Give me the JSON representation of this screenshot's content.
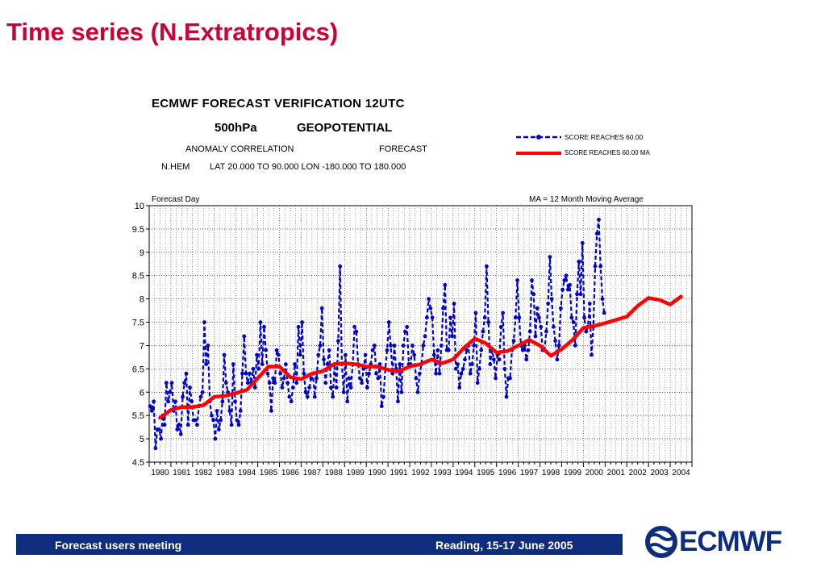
{
  "slide": {
    "title": "Time series (N.Extratropics)",
    "footer_left": "Forecast users meeting",
    "footer_right": "Reading, 15-17 June 2005",
    "logo_text": "ECMWF"
  },
  "colors": {
    "title": "#cc0033",
    "score_line": "#0000cc",
    "ma_line": "#ff0000",
    "footer": "#0f2d7e"
  },
  "header": {
    "line1": "ECMWF  FORECAST  VERIFICATION  12UTC",
    "line2a": "500hPa",
    "line2b": "GEOPOTENTIAL",
    "line3a": "ANOMALY CORRELATION",
    "line3b": "FORECAST",
    "line4a": "N.HEM",
    "line4b": "LAT  20.000 TO  90.000  LON -180.000 TO  180.000"
  },
  "legend": [
    {
      "label": "SCORE REACHES  60.00",
      "style": "dashed-markers",
      "color": "#0000cc"
    },
    {
      "label": "SCORE REACHES  60.00 MA",
      "style": "thick-solid",
      "color": "#ff0000"
    }
  ],
  "chart_data": {
    "type": "line",
    "ylabel": "Forecast Day",
    "annotation": "MA = 12 Month   Moving Average",
    "ylim": [
      4.5,
      10
    ],
    "yticks": [
      "4.5",
      "5",
      "5.5",
      "6",
      "6.5",
      "7",
      "7.5",
      "8",
      "8.5",
      "9",
      "9.5",
      "10"
    ],
    "xticks": [
      "1980",
      "1981",
      "1982",
      "1983",
      "1984",
      "1985",
      "1986",
      "1987",
      "1988",
      "1989",
      "1990",
      "1991",
      "1992",
      "1993",
      "1994",
      "1995",
      "1996",
      "1997",
      "1998",
      "1999",
      "2000",
      "2001",
      "2002",
      "2003",
      "2004"
    ],
    "xlim": [
      1980,
      2005
    ],
    "grid": true,
    "series": [
      {
        "name": "SCORE REACHES  60.00",
        "x_start": 1980.0,
        "x_step_months": 1,
        "values": [
          5.7,
          5.6,
          5.8,
          4.8,
          5.2,
          5.2,
          5.0,
          5.5,
          5.3,
          6.2,
          5.8,
          6.0,
          6.2,
          5.6,
          5.8,
          5.2,
          5.3,
          5.1,
          5.9,
          6.2,
          6.4,
          5.3,
          6.1,
          5.8,
          5.4,
          5.4,
          5.3,
          5.7,
          5.9,
          6.0,
          7.5,
          6.6,
          7.0,
          5.8,
          5.5,
          5.4,
          5.0,
          5.6,
          5.2,
          5.4,
          5.8,
          6.8,
          6.2,
          6.0,
          5.6,
          5.3,
          6.6,
          5.8,
          5.4,
          5.3,
          5.6,
          6.4,
          7.2,
          6.4,
          6.2,
          6.4,
          6.2,
          6.5,
          6.1,
          6.8,
          6.5,
          7.5,
          6.6,
          7.4,
          6.9,
          6.4,
          6.2,
          5.6,
          6.3,
          6.2,
          6.9,
          6.8,
          6.4,
          6.1,
          6.3,
          6.6,
          6.2,
          5.9,
          5.8,
          6.1,
          6.6,
          6.2,
          7.4,
          6.8,
          7.5,
          6.4,
          6.0,
          5.9,
          6.1,
          6.3,
          6.4,
          5.9,
          6.3,
          6.8,
          7.0,
          7.8,
          6.7,
          6.2,
          6.6,
          6.9,
          6.1,
          5.9,
          6.6,
          6.1,
          7.1,
          8.7,
          6.6,
          6.0,
          6.8,
          5.8,
          6.3,
          6.1,
          6.6,
          7.4,
          7.3,
          6.6,
          6.3,
          6.2,
          6.5,
          6.8,
          6.1,
          6.4,
          6.6,
          6.9,
          7.0,
          6.4,
          6.3,
          6.6,
          5.7,
          5.9,
          6.5,
          6.9,
          7.5,
          7.0,
          6.4,
          7.0,
          6.5,
          5.8,
          6.6,
          6.0,
          7.0,
          7.3,
          7.4,
          6.6,
          6.6,
          7.0,
          6.8,
          6.3,
          6.0,
          6.4,
          6.6,
          7.0,
          7.2,
          7.6,
          8.0,
          7.8,
          7.6,
          6.8,
          6.4,
          6.9,
          6.4,
          7.0,
          7.8,
          8.3,
          6.9,
          6.9,
          7.6,
          7.2,
          7.9,
          6.5,
          6.6,
          6.1,
          6.4,
          6.5,
          6.7,
          6.9,
          7.0,
          6.4,
          6.6,
          7.0,
          7.7,
          6.2,
          6.5,
          6.9,
          7.3,
          7.6,
          8.7,
          7.5,
          6.6,
          6.9,
          6.7,
          6.3,
          6.8,
          6.7,
          7.4,
          7.7,
          6.5,
          5.9,
          6.3,
          6.3,
          6.9,
          7.1,
          7.6,
          8.4,
          7.6,
          7.0,
          6.9,
          7.0,
          6.7,
          6.9,
          7.3,
          8.4,
          8.1,
          7.2,
          7.8,
          7.6,
          7.4,
          6.9,
          6.9,
          7.3,
          7.9,
          8.9,
          8.0,
          7.4,
          7.1,
          6.7,
          7.0,
          7.8,
          8.2,
          8.4,
          8.5,
          8.2,
          8.3,
          7.6,
          7.5,
          7.0,
          8.1,
          8.8,
          8.1,
          9.2,
          7.6,
          7.3,
          7.4,
          7.9,
          6.8,
          7.4,
          8.7,
          9.4,
          9.7,
          8.7,
          8.0,
          7.7
        ]
      },
      {
        "name": "SCORE REACHES  60.00 MA",
        "x": [
          1980.5,
          1980.8,
          1981.0,
          1981.5,
          1982.0,
          1982.5,
          1983.0,
          1983.5,
          1984.0,
          1984.5,
          1985.0,
          1985.5,
          1986.0,
          1986.5,
          1987.0,
          1987.5,
          1988.0,
          1988.5,
          1989.0,
          1989.5,
          1990.0,
          1990.5,
          1991.0,
          1991.5,
          1992.0,
          1992.5,
          1993.0,
          1993.5,
          1994.0,
          1994.5,
          1995.0,
          1995.5,
          1996.0,
          1996.5,
          1997.0,
          1997.5,
          1998.0,
          1998.5,
          1999.0,
          1999.5,
          2000.0,
          2000.5,
          2001.0,
          2001.5,
          2002.0,
          2002.5,
          2003.0,
          2003.5,
          2004.0,
          2004.5
        ],
        "values": [
          5.45,
          5.55,
          5.62,
          5.68,
          5.68,
          5.72,
          5.9,
          5.92,
          5.98,
          6.05,
          6.3,
          6.55,
          6.55,
          6.32,
          6.28,
          6.4,
          6.45,
          6.6,
          6.62,
          6.6,
          6.55,
          6.55,
          6.48,
          6.45,
          6.55,
          6.6,
          6.7,
          6.62,
          6.7,
          6.95,
          7.15,
          7.05,
          6.85,
          6.88,
          7.0,
          7.12,
          7.0,
          6.78,
          6.92,
          7.12,
          7.38,
          7.42,
          7.48,
          7.55,
          7.62,
          7.85,
          8.02,
          7.98,
          7.88,
          8.05
        ]
      }
    ]
  }
}
